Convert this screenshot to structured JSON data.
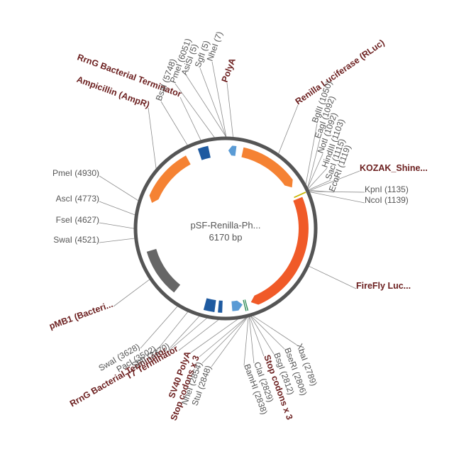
{
  "plasmid": {
    "name": "pSF-Renilla-Ph...",
    "size": "6170 bp",
    "total_bp": 6170
  },
  "colors": {
    "backbone": "#555555",
    "orange": "#f58233",
    "red_orange": "#f05a28",
    "gray": "#666666",
    "blue_dark": "#1e5aa0",
    "blue_light": "#5a9bd5",
    "yellow": "#c8b400",
    "green": "#2e8b57",
    "site_text": "#555555",
    "feature_text": "#6b1e1e"
  },
  "features": [
    {
      "id": "ampr",
      "label": "Ampicillin (AmpR)",
      "start": 4955,
      "end": 5680,
      "direction": -1,
      "color": "#f58233",
      "icon": "arrow"
    },
    {
      "id": "rrng-top",
      "label": "RrnG Bacterial Terminator",
      "start": 5840,
      "end": 5965,
      "direction": 0,
      "color": "#1e5aa0",
      "icon": "box"
    },
    {
      "id": "polya-top",
      "label": "PolyA",
      "start": 35,
      "end": 130,
      "direction": -1,
      "color": "#5a9bd5",
      "icon": "arrow"
    },
    {
      "id": "rluc",
      "label": "Renilla Luciferase (RLuc)",
      "start": 215,
      "end": 1000,
      "direction": 1,
      "color": "#f58233",
      "icon": "arrow"
    },
    {
      "id": "kozak",
      "label": "KOZAK_Shine...",
      "start": 1118,
      "end": 1133,
      "direction": 0,
      "color": "#c8b400",
      "icon": "box"
    },
    {
      "id": "ffluc",
      "label": "FireFly Luc...",
      "start": 1160,
      "end": 2760,
      "direction": 1,
      "color": "#f05a28",
      "icon": "arrow"
    },
    {
      "id": "stop-right",
      "label": "Stop codons x 3",
      "start": 2818,
      "end": 2830,
      "direction": 0,
      "color": "#2e8b57",
      "icon": "box"
    },
    {
      "id": "stop-left",
      "label": "Stop codons x 3",
      "start": 2840,
      "end": 2852,
      "direction": 0,
      "color": "#2e8b57",
      "icon": "box"
    },
    {
      "id": "sv40",
      "label": "SV40 PolyA",
      "start": 2870,
      "end": 3005,
      "direction": -1,
      "color": "#5a9bd5",
      "icon": "arrow"
    },
    {
      "id": "t7",
      "label": "T7 Terminator",
      "start": 3125,
      "end": 3175,
      "direction": 0,
      "color": "#1e5aa0",
      "icon": "box"
    },
    {
      "id": "rrng-bottom",
      "label": "RrnG Bacterial Terminator",
      "start": 3215,
      "end": 3345,
      "direction": 0,
      "color": "#1e5aa0",
      "icon": "box"
    },
    {
      "id": "pmb1",
      "label": "pMB1 (Bacteri...",
      "start": 3750,
      "end": 4345,
      "direction": 0,
      "color": "#666666",
      "icon": "bar"
    }
  ],
  "sites": [
    {
      "id": "nhei-7",
      "label": "NheI (7)",
      "pos": 7
    },
    {
      "id": "sgfi-5",
      "label": "SgfI (5)",
      "pos": 5
    },
    {
      "id": "asisi-5",
      "label": "AsiSI (5)",
      "pos": 5
    },
    {
      "id": "pmei-6051",
      "label": "PmeI (6051)",
      "pos": 6051
    },
    {
      "id": "bsai-5748",
      "label": "BsaI (5748)",
      "pos": 5748
    },
    {
      "id": "bglii-1050",
      "label": "BglII (1050)",
      "pos": 1050
    },
    {
      "id": "eagi-1092",
      "label": "EagI (1092)",
      "pos": 1092
    },
    {
      "id": "noti-1092",
      "label": "NotI (1092)",
      "pos": 1092
    },
    {
      "id": "hindiii-1103",
      "label": "HindIII (1103)",
      "pos": 1103
    },
    {
      "id": "saci-1115",
      "label": "SacI (1115)",
      "pos": 1115
    },
    {
      "id": "ecori-1119",
      "label": "EcoRI (1119)",
      "pos": 1119
    },
    {
      "id": "kpni-1135",
      "label": "KpnI (1135)",
      "pos": 1135
    },
    {
      "id": "ncoi-1139",
      "label": "NcoI (1139)",
      "pos": 1139
    },
    {
      "id": "xbai-2789",
      "label": "XbaI (2789)",
      "pos": 2789
    },
    {
      "id": "bseri-2806",
      "label": "BseRI (2806)",
      "pos": 2806
    },
    {
      "id": "bsgi-2812",
      "label": "BsgI (2812)",
      "pos": 2812
    },
    {
      "id": "clai-2829",
      "label": "ClaI (2829)",
      "pos": 2829
    },
    {
      "id": "bamhi-2838",
      "label": "BamHI (2838)",
      "pos": 2838
    },
    {
      "id": "stui-2848",
      "label": "StuI (2848)",
      "pos": 2848
    },
    {
      "id": "nhei-2854",
      "label": "NheI (2854)",
      "pos": 2854
    },
    {
      "id": "sbfi-3370",
      "label": "SbfI (3370)",
      "pos": 3370
    },
    {
      "id": "paci-3502",
      "label": "PacI (3502)",
      "pos": 3502
    },
    {
      "id": "swai-3628",
      "label": "SwaI (3628)",
      "pos": 3628
    },
    {
      "id": "swai-4521",
      "label": "SwaI (4521)",
      "pos": 4521
    },
    {
      "id": "fsei-4627",
      "label": "FseI (4627)",
      "pos": 4627
    },
    {
      "id": "asci-4773",
      "label": "AscI (4773)",
      "pos": 4773
    },
    {
      "id": "pmei-4930",
      "label": "PmeI (4930)",
      "pos": 4930
    }
  ]
}
